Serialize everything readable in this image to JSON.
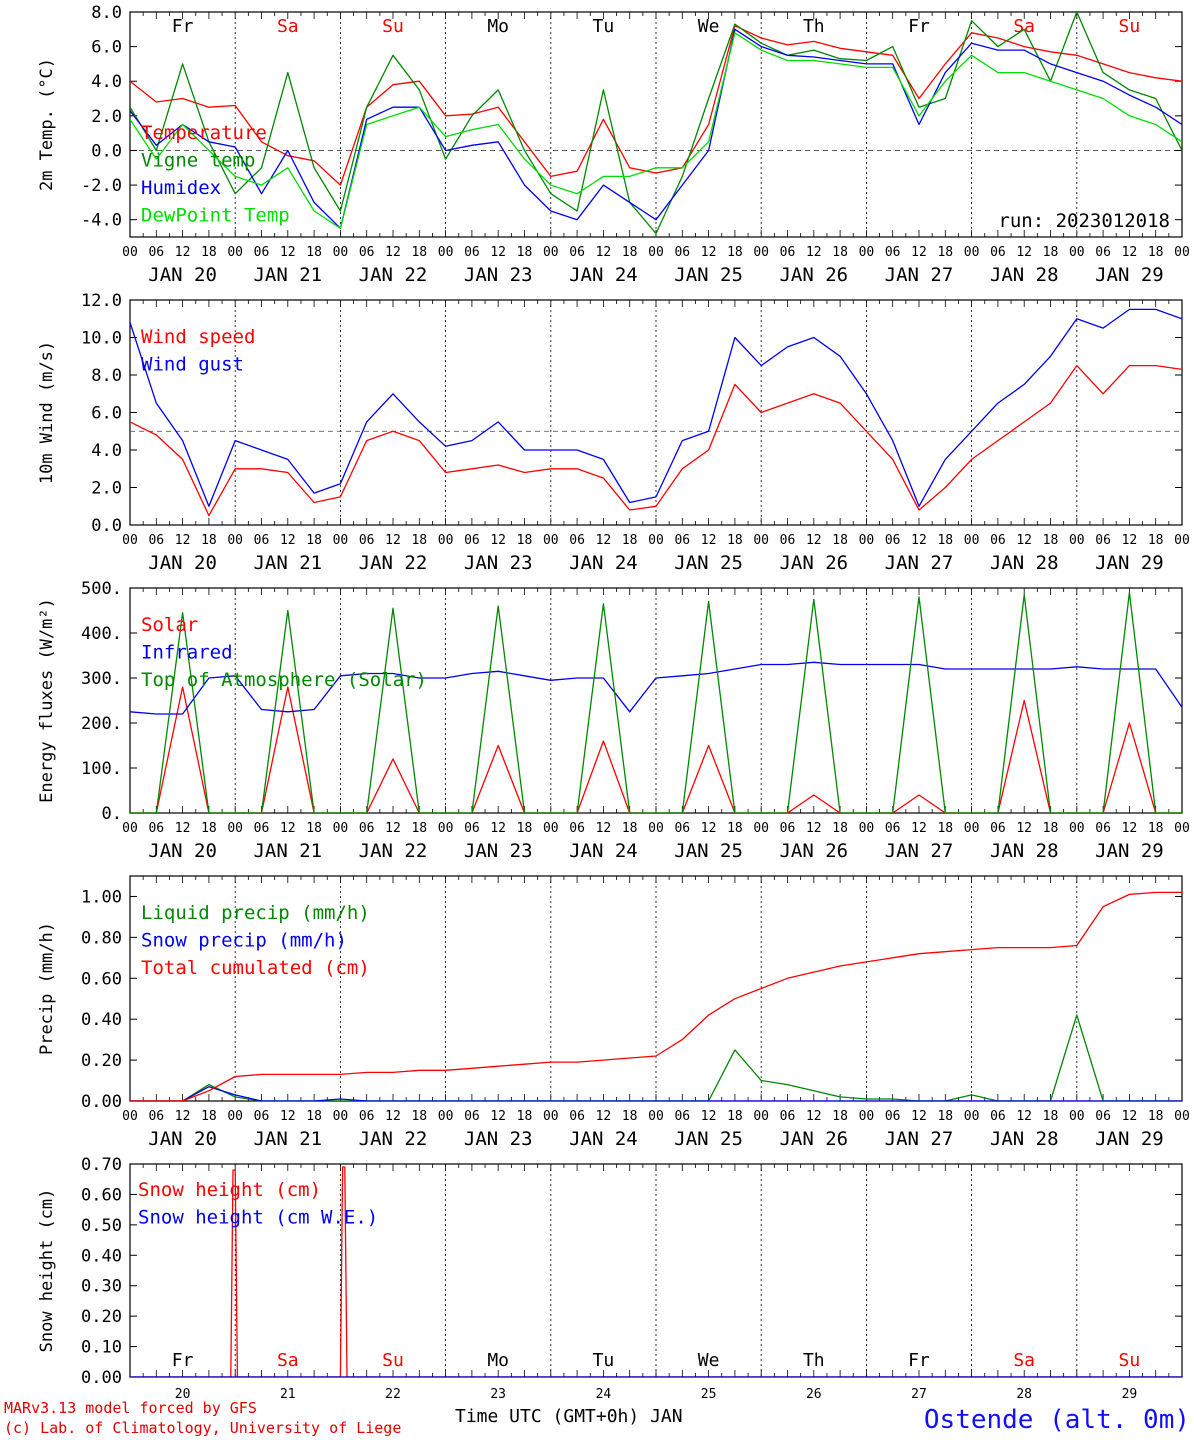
{
  "days": [
    {
      "abbr": "Fr",
      "weekend": false,
      "date": "JAN 20",
      "num": "20"
    },
    {
      "abbr": "Sa",
      "weekend": true,
      "date": "JAN 21",
      "num": "21"
    },
    {
      "abbr": "Su",
      "weekend": true,
      "date": "JAN 22",
      "num": "22"
    },
    {
      "abbr": "Mo",
      "weekend": false,
      "date": "JAN 23",
      "num": "23"
    },
    {
      "abbr": "Tu",
      "weekend": false,
      "date": "JAN 24",
      "num": "24"
    },
    {
      "abbr": "We",
      "weekend": false,
      "date": "JAN 25",
      "num": "25"
    },
    {
      "abbr": "Th",
      "weekend": false,
      "date": "JAN 26",
      "num": "26"
    },
    {
      "abbr": "Fr",
      "weekend": false,
      "date": "JAN 27",
      "num": "27"
    },
    {
      "abbr": "Sa",
      "weekend": true,
      "date": "JAN 28",
      "num": "28"
    },
    {
      "abbr": "Su",
      "weekend": true,
      "date": "JAN 29",
      "num": "29"
    }
  ],
  "hour_ticks": [
    "00",
    "06",
    "12",
    "18"
  ],
  "last_tick": "00",
  "colors": {
    "red": "#ff0000",
    "green": "#008800",
    "blue": "#0000ee",
    "lightgreen": "#00dd00",
    "weekend": "#ff0000",
    "weekday": "#000000"
  },
  "footer": {
    "credit_1": "MARv3.13 model forced by GFS",
    "credit_2": "(c) Lab. of Climatology, University of Liege",
    "axis_title": "Time UTC (GMT+0h) JAN",
    "station": "Ostende (alt. 0m)"
  },
  "chart_data": [
    {
      "type": "line",
      "ylabel": "2m Temp. (°C)",
      "ylim": [
        -5,
        8
      ],
      "ytick_labels": [
        "-4.0",
        "-2.0",
        "0.0",
        "2.0",
        "4.0",
        "6.0",
        "8.0"
      ],
      "ytick_values": [
        -4,
        -2,
        0,
        2,
        4,
        6,
        8
      ],
      "ref_line": 0,
      "annotation": "run: 2023012018",
      "x_hours": [
        0,
        6,
        12,
        18,
        24,
        30,
        36,
        42,
        48,
        54,
        60,
        66,
        72,
        78,
        84,
        90,
        96,
        102,
        108,
        114,
        120,
        126,
        132,
        138,
        144,
        150,
        156,
        162,
        168,
        174,
        180,
        186,
        192,
        198,
        204,
        210,
        216,
        222,
        228,
        234,
        240
      ],
      "series": [
        {
          "name": "Temperature",
          "color": "red",
          "values": [
            4.0,
            2.8,
            3.0,
            2.5,
            2.6,
            0.5,
            -0.3,
            -0.6,
            -2.0,
            2.5,
            3.8,
            4.0,
            2.0,
            2.1,
            2.5,
            0.5,
            -1.5,
            -1.2,
            1.8,
            -1.0,
            -1.3,
            -1.0,
            1.5,
            7.2,
            6.5,
            6.1,
            6.3,
            5.9,
            5.7,
            5.5,
            3.0,
            5.0,
            6.8,
            6.5,
            6.0,
            5.7,
            5.5,
            5.0,
            4.5,
            4.2,
            4.0
          ]
        },
        {
          "name": "Vigne temp",
          "color": "green",
          "values": [
            2.5,
            0.0,
            5.0,
            0.5,
            -2.5,
            -1.0,
            4.5,
            -1.0,
            -3.5,
            2.5,
            5.5,
            3.5,
            -0.5,
            2.0,
            3.5,
            0.0,
            -2.5,
            -3.5,
            3.5,
            -3.0,
            -4.8,
            -1.5,
            3.0,
            7.3,
            6.2,
            5.5,
            5.8,
            5.3,
            5.2,
            6.0,
            2.5,
            3.0,
            7.5,
            6.0,
            7.0,
            4.0,
            8.0,
            4.5,
            3.5,
            3.0,
            0.0
          ]
        },
        {
          "name": "Humidex",
          "color": "blue",
          "values": [
            2.3,
            0.3,
            1.5,
            0.5,
            0.2,
            -2.5,
            0.0,
            -3.0,
            -4.5,
            1.8,
            2.5,
            2.5,
            0.0,
            0.3,
            0.5,
            -2.0,
            -3.5,
            -4.0,
            -2.0,
            -3.0,
            -4.0,
            -2.0,
            0.0,
            7.0,
            6.0,
            5.5,
            5.4,
            5.2,
            5.0,
            5.0,
            1.5,
            4.5,
            6.2,
            5.8,
            5.8,
            5.0,
            4.5,
            4.0,
            3.2,
            2.5,
            1.5
          ]
        },
        {
          "name": "DewPoint Temp",
          "color": "lightgreen",
          "values": [
            1.8,
            -0.5,
            1.5,
            0.0,
            -1.5,
            -2.0,
            -1.0,
            -3.5,
            -4.5,
            1.5,
            2.0,
            2.5,
            0.8,
            1.2,
            1.5,
            -0.5,
            -2.0,
            -2.5,
            -1.5,
            -1.5,
            -1.0,
            -1.0,
            0.5,
            6.8,
            5.8,
            5.2,
            5.2,
            5.0,
            4.8,
            4.8,
            2.0,
            4.0,
            5.5,
            4.5,
            4.5,
            4.0,
            3.5,
            3.0,
            2.0,
            1.5,
            0.5
          ]
        }
      ]
    },
    {
      "type": "line",
      "ylabel": "10m Wind (m/s)",
      "ylim": [
        0,
        12
      ],
      "ytick_labels": [
        "0.0",
        "2.0",
        "4.0",
        "6.0",
        "8.0",
        "10.0",
        "12.0"
      ],
      "ytick_values": [
        0,
        2,
        4,
        6,
        8,
        10,
        12
      ],
      "ref_line": 5,
      "x_hours": [
        0,
        6,
        12,
        18,
        24,
        30,
        36,
        42,
        48,
        54,
        60,
        66,
        72,
        78,
        84,
        90,
        96,
        102,
        108,
        114,
        120,
        126,
        132,
        138,
        144,
        150,
        156,
        162,
        168,
        174,
        180,
        186,
        192,
        198,
        204,
        210,
        216,
        222,
        228,
        234,
        240
      ],
      "series": [
        {
          "name": "Wind speed",
          "color": "red",
          "values": [
            5.5,
            4.8,
            3.5,
            0.5,
            3.0,
            3.0,
            2.8,
            1.2,
            1.5,
            4.5,
            5.0,
            4.5,
            2.8,
            3.0,
            3.2,
            2.8,
            3.0,
            3.0,
            2.5,
            0.8,
            1.0,
            3.0,
            4.0,
            7.5,
            6.0,
            6.5,
            7.0,
            6.5,
            5.0,
            3.5,
            0.8,
            2.0,
            3.5,
            4.5,
            5.5,
            6.5,
            8.5,
            7.0,
            8.5,
            8.5,
            8.3
          ]
        },
        {
          "name": "Wind gust",
          "color": "blue",
          "values": [
            10.8,
            6.5,
            4.5,
            1.0,
            4.5,
            4.0,
            3.5,
            1.7,
            2.2,
            5.5,
            7.0,
            5.5,
            4.2,
            4.5,
            5.5,
            4.0,
            4.0,
            4.0,
            3.5,
            1.2,
            1.5,
            4.5,
            5.0,
            10.0,
            8.5,
            9.5,
            10.0,
            9.0,
            7.0,
            4.5,
            1.0,
            3.5,
            5.0,
            6.5,
            7.5,
            9.0,
            11.0,
            10.5,
            11.5,
            11.5,
            11.0
          ]
        }
      ]
    },
    {
      "type": "line",
      "ylabel": "Energy fluxes (W/m²)",
      "ylim": [
        0,
        500
      ],
      "ytick_labels": [
        "0.",
        "100.",
        "200.",
        "300.",
        "400.",
        "500."
      ],
      "ytick_values": [
        0,
        100,
        200,
        300,
        400,
        500
      ],
      "x_hours": [
        0,
        6,
        12,
        18,
        24,
        30,
        36,
        42,
        48,
        54,
        60,
        66,
        72,
        78,
        84,
        90,
        96,
        102,
        108,
        114,
        120,
        126,
        132,
        138,
        144,
        150,
        156,
        162,
        168,
        174,
        180,
        186,
        192,
        198,
        204,
        210,
        216,
        222,
        228,
        234,
        240
      ],
      "series": [
        {
          "name": "Solar",
          "color": "red",
          "values": [
            0,
            0,
            280,
            0,
            0,
            0,
            280,
            0,
            0,
            0,
            120,
            0,
            0,
            0,
            150,
            0,
            0,
            0,
            160,
            0,
            0,
            0,
            150,
            0,
            0,
            0,
            40,
            0,
            0,
            0,
            40,
            0,
            0,
            0,
            250,
            0,
            0,
            0,
            200,
            0,
            0
          ]
        },
        {
          "name": "Infrared",
          "color": "blue",
          "values": [
            225,
            220,
            220,
            300,
            305,
            230,
            225,
            230,
            305,
            310,
            310,
            300,
            300,
            310,
            315,
            305,
            295,
            300,
            300,
            225,
            300,
            305,
            310,
            320,
            330,
            330,
            335,
            330,
            330,
            330,
            330,
            320,
            320,
            320,
            320,
            320,
            325,
            320,
            320,
            320,
            235
          ]
        },
        {
          "name": "Top of Atmosphere (Solar)",
          "color": "green",
          "values": [
            0,
            0,
            445,
            0,
            0,
            0,
            450,
            0,
            0,
            0,
            455,
            0,
            0,
            0,
            460,
            0,
            0,
            0,
            465,
            0,
            0,
            0,
            470,
            0,
            0,
            0,
            475,
            0,
            0,
            0,
            480,
            0,
            0,
            0,
            485,
            0,
            0,
            0,
            490,
            0,
            0
          ]
        }
      ]
    },
    {
      "type": "line",
      "ylabel": "Precip (mm/h)",
      "ylim": [
        0,
        1.1
      ],
      "ytick_labels": [
        "0.00",
        "0.20",
        "0.40",
        "0.60",
        "0.80",
        "1.00"
      ],
      "ytick_values": [
        0,
        0.2,
        0.4,
        0.6,
        0.8,
        1.0
      ],
      "x_hours": [
        0,
        6,
        12,
        18,
        24,
        30,
        36,
        42,
        48,
        54,
        60,
        66,
        72,
        78,
        84,
        90,
        96,
        102,
        108,
        114,
        120,
        126,
        132,
        138,
        144,
        150,
        156,
        162,
        168,
        174,
        180,
        186,
        192,
        198,
        204,
        210,
        216,
        222,
        228,
        234,
        240
      ],
      "series": [
        {
          "name": "Liquid precip (mm/h)",
          "color": "green",
          "values": [
            0,
            0,
            0,
            0.08,
            0.02,
            0,
            0,
            0,
            0,
            0,
            0,
            0,
            0,
            0,
            0,
            0,
            0,
            0,
            0,
            0,
            0,
            0,
            0,
            0.25,
            0.1,
            0.08,
            0.05,
            0.02,
            0.01,
            0.01,
            0,
            0,
            0.03,
            0,
            0,
            0,
            0.42,
            0,
            0,
            0,
            0
          ]
        },
        {
          "name": "Snow precip (mm/h)",
          "color": "blue",
          "values": [
            0,
            0,
            0,
            0.07,
            0.03,
            0,
            0,
            0,
            0.01,
            0,
            0,
            0,
            0,
            0,
            0,
            0,
            0,
            0,
            0,
            0,
            0,
            0,
            0,
            0,
            0,
            0,
            0,
            0,
            0,
            0,
            0,
            0,
            0,
            0,
            0,
            0,
            0,
            0,
            0,
            0,
            0
          ]
        },
        {
          "name": "Total cumulated (cm)",
          "color": "red",
          "values": [
            0,
            0,
            0,
            0.05,
            0.12,
            0.13,
            0.13,
            0.13,
            0.13,
            0.14,
            0.14,
            0.15,
            0.15,
            0.16,
            0.17,
            0.18,
            0.19,
            0.19,
            0.2,
            0.21,
            0.22,
            0.3,
            0.42,
            0.5,
            0.55,
            0.6,
            0.63,
            0.66,
            0.68,
            0.7,
            0.72,
            0.73,
            0.74,
            0.75,
            0.75,
            0.75,
            0.76,
            0.95,
            1.01,
            1.02,
            1.02
          ]
        }
      ]
    },
    {
      "type": "line",
      "ylabel": "Snow height (cm)",
      "ylim": [
        0,
        0.7
      ],
      "ytick_labels": [
        "0.00",
        "0.10",
        "0.20",
        "0.30",
        "0.40",
        "0.50",
        "0.60",
        "0.70"
      ],
      "ytick_values": [
        0,
        0.1,
        0.2,
        0.3,
        0.4,
        0.5,
        0.6,
        0.7
      ],
      "x_hours": [
        0,
        23,
        23.5,
        24,
        24.5,
        48,
        48.5,
        49,
        49.5,
        240
      ],
      "series": [
        {
          "name": "Snow height (cm)",
          "color": "red",
          "values": [
            0,
            0,
            0.68,
            0.68,
            0,
            0,
            0.69,
            0.69,
            0,
            0
          ]
        },
        {
          "name": "Snow height (cm W.E.)",
          "color": "blue",
          "values": [
            0,
            0,
            0,
            0,
            0,
            0,
            0,
            0,
            0,
            0
          ]
        }
      ]
    }
  ]
}
